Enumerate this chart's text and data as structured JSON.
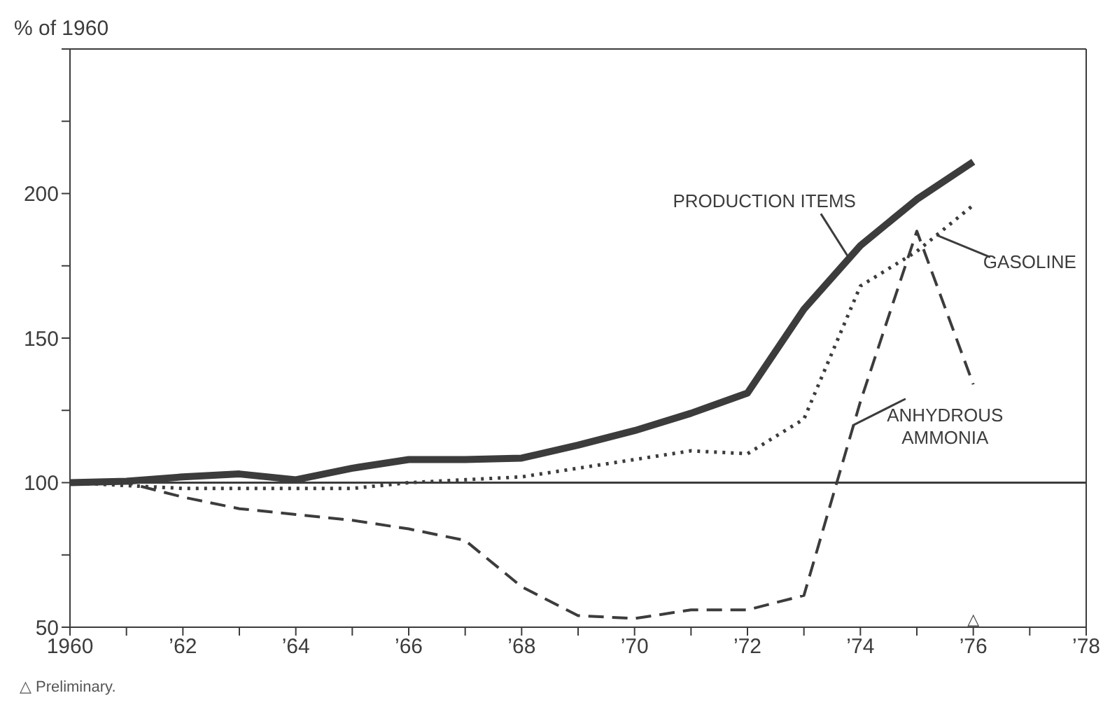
{
  "chart_data": {
    "type": "line",
    "ylabel": "% of 1960",
    "x": [
      1960,
      1961,
      1962,
      1963,
      1964,
      1965,
      1966,
      1967,
      1968,
      1969,
      1970,
      1971,
      1972,
      1973,
      1974,
      1975,
      1976
    ],
    "series": [
      {
        "name": "PRODUCTION ITEMS",
        "color": "#3c3c3c",
        "line_style": "solid",
        "values": [
          100,
          100.5,
          102,
          103,
          101,
          105,
          108,
          108,
          108.5,
          113,
          118,
          124,
          131,
          160,
          182,
          198,
          211
        ]
      },
      {
        "name": "GASOLINE",
        "color": "#3c3c3c",
        "line_style": "dotted",
        "values": [
          100,
          99,
          98,
          98,
          98,
          98,
          100,
          101,
          102,
          105,
          108,
          111,
          110,
          122,
          168,
          180,
          196
        ]
      },
      {
        "name": "ANHYDROUS AMMONIA",
        "color": "#3c3c3c",
        "line_style": "dashed",
        "values": [
          100,
          100,
          95,
          91,
          89,
          87,
          84,
          80,
          64,
          54,
          53,
          56,
          56,
          61,
          128,
          187,
          134
        ]
      }
    ],
    "xlim": [
      1960,
      1978
    ],
    "xticks": [
      {
        "value": 1960,
        "label": "1960"
      },
      {
        "value": 1961,
        "label": null
      },
      {
        "value": 1962,
        "label": "’62"
      },
      {
        "value": 1963,
        "label": null
      },
      {
        "value": 1964,
        "label": "’64"
      },
      {
        "value": 1965,
        "label": null
      },
      {
        "value": 1966,
        "label": "’66"
      },
      {
        "value": 1967,
        "label": null
      },
      {
        "value": 1968,
        "label": "’68"
      },
      {
        "value": 1969,
        "label": null
      },
      {
        "value": 1970,
        "label": "’70"
      },
      {
        "value": 1971,
        "label": null
      },
      {
        "value": 1972,
        "label": "’72"
      },
      {
        "value": 1973,
        "label": null
      },
      {
        "value": 1974,
        "label": "’74"
      },
      {
        "value": 1975,
        "label": null
      },
      {
        "value": 1976,
        "label": "’76"
      },
      {
        "value": 1977,
        "label": null
      },
      {
        "value": 1978,
        "label": "’78"
      }
    ],
    "ylim": [
      50,
      250
    ],
    "yticks": [
      50,
      {
        "value": 75,
        "label": null
      },
      100,
      {
        "value": 125,
        "label": null
      },
      150,
      {
        "value": 175,
        "label": null
      },
      200,
      {
        "value": 225,
        "label": null
      },
      {
        "value": 250,
        "label": null
      }
    ],
    "ref_lines": [
      {
        "axis": "y",
        "value": 100,
        "color": "#3c3c3c"
      }
    ],
    "annotations": [
      "△",
      "△ Preliminary."
    ],
    "marker": "none"
  }
}
